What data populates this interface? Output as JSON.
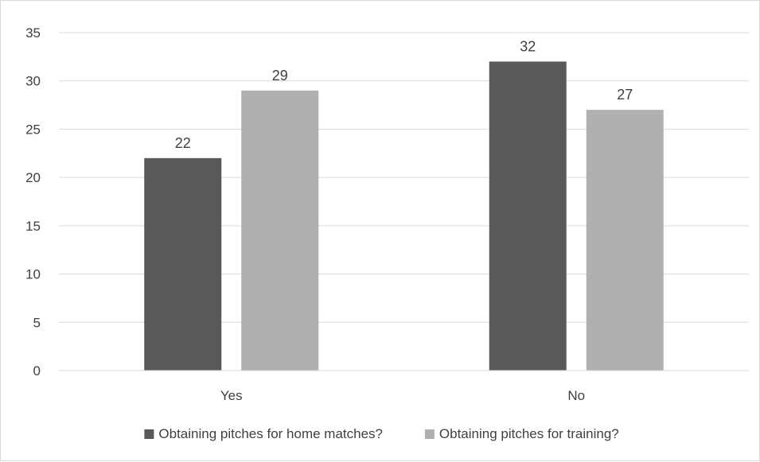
{
  "chart_data": {
    "type": "bar",
    "categories": [
      "Yes",
      "No"
    ],
    "series": [
      {
        "name": "Obtaining pitches for home matches?",
        "values": [
          22,
          32
        ],
        "color": "#595959"
      },
      {
        "name": "Obtaining pitches for training?",
        "values": [
          29,
          27
        ],
        "color": "#b0b0b0"
      }
    ],
    "ylim": [
      0,
      35
    ],
    "yticks": [
      0,
      5,
      10,
      15,
      20,
      25,
      30,
      35
    ],
    "title": "",
    "xlabel": "",
    "ylabel": "",
    "grid": true,
    "legend_position": "bottom",
    "data_labels": true
  }
}
